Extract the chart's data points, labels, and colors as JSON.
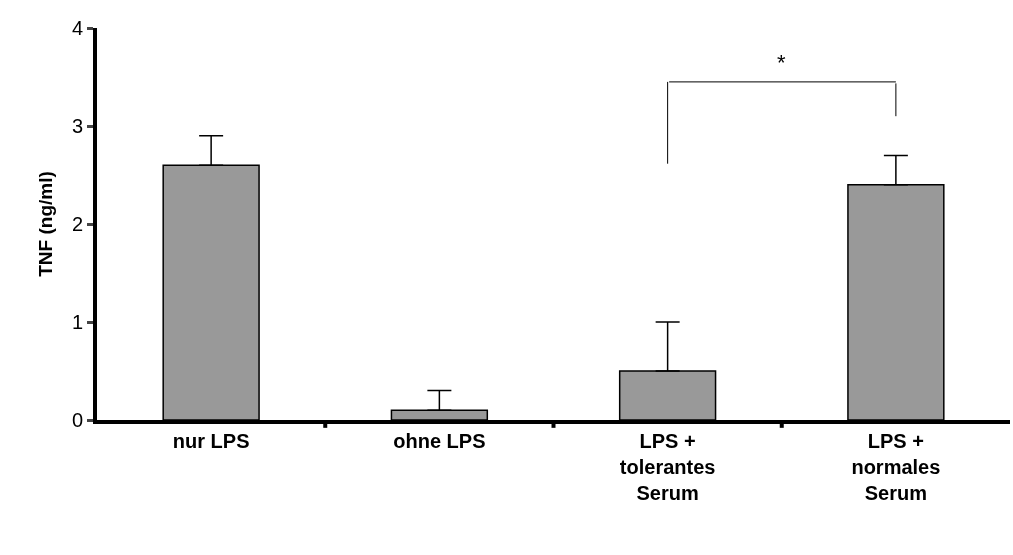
{
  "chart_data": {
    "type": "bar",
    "ylabel": "TNF (ng/ml)",
    "categories": [
      "nur LPS",
      "ohne LPS",
      "LPS + tolerantes Serum",
      "LPS + normales Serum"
    ],
    "values": [
      2.6,
      0.1,
      0.5,
      2.4
    ],
    "color": "#999999",
    "errors": [
      [
        2.6,
        2.9
      ],
      [
        0.1,
        0.3
      ],
      [
        0.5,
        1.0
      ],
      [
        2.4,
        2.7
      ]
    ],
    "ylim": [
      0,
      4
    ],
    "yticks": [
      0,
      1,
      2,
      3,
      4
    ],
    "annotations": [
      "*"
    ]
  }
}
